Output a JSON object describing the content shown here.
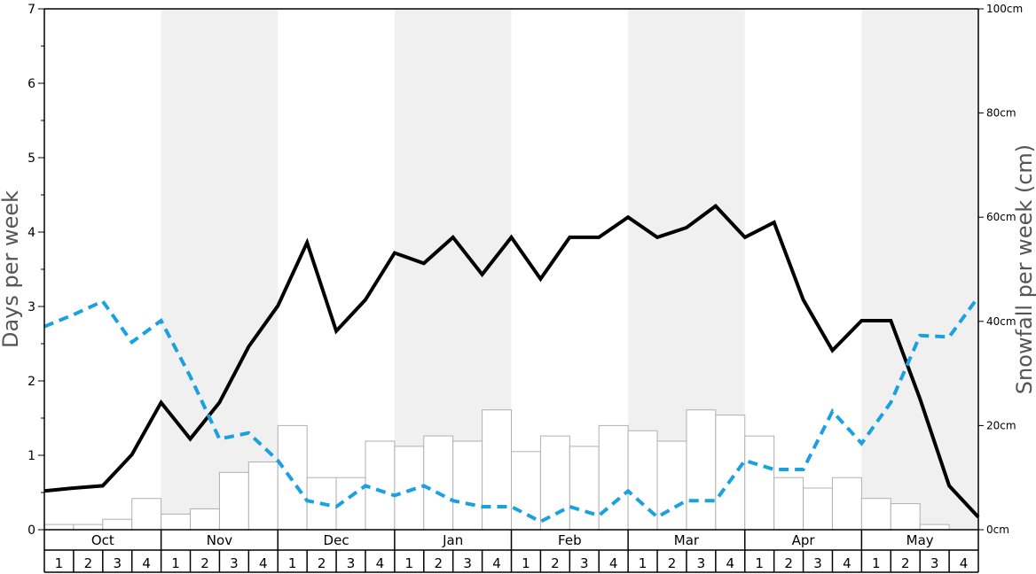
{
  "chart_data": {
    "type": "bar+line",
    "ylabel_left": "Days per week",
    "ylabel_right": "Snowfall per week (cm)",
    "ylim_left": [
      0,
      7
    ],
    "ylim_right": [
      0,
      100
    ],
    "left_ticks": [
      "0",
      "1",
      "2",
      "3",
      "4",
      "5",
      "6",
      "7"
    ],
    "right_ticks": [
      "0cm",
      "20cm",
      "40cm",
      "60cm",
      "80cm",
      "100cm"
    ],
    "months": [
      {
        "label": "Oct",
        "weeks": [
          "1",
          "2",
          "3",
          "4"
        ]
      },
      {
        "label": "Nov",
        "weeks": [
          "1",
          "2",
          "3",
          "4"
        ]
      },
      {
        "label": "Dec",
        "weeks": [
          "1",
          "2",
          "3",
          "4"
        ]
      },
      {
        "label": "Jan",
        "weeks": [
          "1",
          "2",
          "3",
          "4"
        ]
      },
      {
        "label": "Feb",
        "weeks": [
          "1",
          "2",
          "3",
          "4"
        ]
      },
      {
        "label": "Mar",
        "weeks": [
          "1",
          "2",
          "3",
          "4"
        ]
      },
      {
        "label": "Apr",
        "weeks": [
          "1",
          "2",
          "3",
          "4"
        ]
      },
      {
        "label": "May",
        "weeks": [
          "1",
          "2",
          "3",
          "4"
        ]
      }
    ],
    "shaded_months": [
      1,
      3,
      5,
      7
    ],
    "snowfall_cm": [
      1,
      1,
      2,
      6,
      3,
      4,
      11,
      13,
      20,
      10,
      10,
      17,
      16,
      18,
      17,
      23,
      15,
      18,
      16,
      20,
      19,
      17,
      23,
      22,
      18,
      10,
      8,
      10,
      6,
      5,
      1,
      0
    ],
    "series": [
      {
        "values": [
          0.52,
          0.56,
          0.59,
          1.01,
          1.71,
          1.22,
          1.71,
          2.46,
          3.01,
          3.86,
          2.67,
          3.09,
          3.72,
          3.58,
          3.93,
          3.43,
          3.93,
          3.37,
          3.93,
          3.93,
          4.2,
          3.93,
          4.06,
          4.35,
          3.93,
          4.13,
          3.09,
          2.41,
          2.81,
          2.81,
          1.76,
          0.59,
          0.17
        ],
        "color": "#000000",
        "style": "solid"
      },
      {
        "values": [
          2.73,
          2.89,
          3.07,
          2.52,
          2.81,
          2.06,
          1.22,
          1.3,
          0.93,
          0.39,
          0.31,
          0.59,
          0.46,
          0.59,
          0.39,
          0.31,
          0.31,
          0.11,
          0.31,
          0.19,
          0.52,
          0.17,
          0.39,
          0.39,
          0.93,
          0.81,
          0.81,
          1.59,
          1.16,
          1.71,
          2.61,
          2.59,
          3.13
        ],
        "color": "#1aa1e0",
        "style": "dashed"
      }
    ],
    "colors": {
      "shade": "#f0f0f0",
      "bar_fill": "#ffffff",
      "bar_stroke": "#b0b0b0"
    }
  }
}
